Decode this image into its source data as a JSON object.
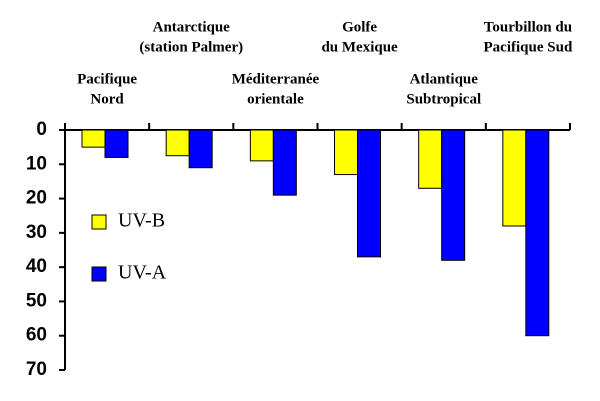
{
  "chart_data": {
    "type": "bar",
    "categories": [
      [
        "Pacifique",
        "Nord"
      ],
      [
        "Antarctique",
        "(station Palmer)"
      ],
      [
        "Méditerranée",
        "orientale"
      ],
      [
        "Golfe",
        "du Mexique"
      ],
      [
        "Atlantique",
        "Subtropical"
      ],
      [
        "Tourbillon du",
        "Pacifique Sud"
      ]
    ],
    "series": [
      {
        "name": "UV-B",
        "color": "#ffff00",
        "values": [
          5,
          7.5,
          9,
          13,
          17,
          28
        ]
      },
      {
        "name": "UV-A",
        "color": "#0000ff",
        "values": [
          8,
          11,
          19,
          37,
          38,
          60
        ]
      }
    ],
    "ylim": [
      0,
      70
    ],
    "yticks": [
      0,
      10,
      20,
      30,
      40,
      50,
      60,
      70
    ],
    "y_inverted": true
  }
}
